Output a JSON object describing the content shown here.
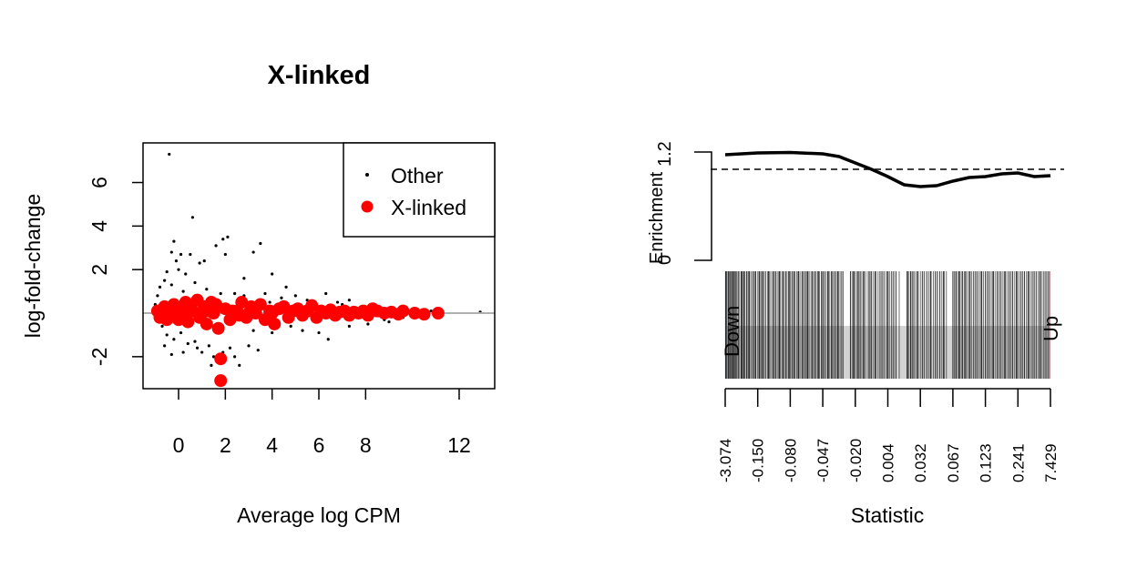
{
  "chart_data": [
    {
      "type": "scatter",
      "title": "X-linked",
      "xlabel": "Average log CPM",
      "ylabel": "log-fold-change",
      "xlim": [
        -1.52,
        13.52
      ],
      "ylim": [
        -3.47,
        7.82
      ],
      "xticks": [
        0,
        2,
        4,
        6,
        8,
        12
      ],
      "yticks": [
        -2,
        2,
        4,
        6
      ],
      "hline": 0,
      "hline_color": "#b0b0b0",
      "legend": {
        "placement": "top-right",
        "entries": [
          {
            "label": "Other",
            "color": "#000000",
            "marker": "small-dot"
          },
          {
            "label": "X-linked",
            "color": "#ff0000",
            "marker": "large-dot"
          }
        ]
      },
      "series": [
        {
          "name": "Other",
          "color": "#000000",
          "points": [
            [
              -0.4,
              7.3
            ],
            [
              0.6,
              4.4
            ],
            [
              -0.2,
              3.3
            ],
            [
              -0.3,
              2.8
            ],
            [
              -0.1,
              2.4
            ],
            [
              0.1,
              2.7
            ],
            [
              0.5,
              2.7
            ],
            [
              0.9,
              2.3
            ],
            [
              1.1,
              2.4
            ],
            [
              0.0,
              2.0
            ],
            [
              0.3,
              1.8
            ],
            [
              -0.5,
              1.9
            ],
            [
              -0.6,
              1.5
            ],
            [
              -0.8,
              1.2
            ],
            [
              -0.3,
              1.3
            ],
            [
              0.2,
              1.0
            ],
            [
              0.7,
              1.4
            ],
            [
              1.2,
              1.1
            ],
            [
              1.6,
              3.1
            ],
            [
              1.9,
              3.4
            ],
            [
              2.1,
              3.5
            ],
            [
              2.0,
              2.7
            ],
            [
              3.5,
              3.2
            ],
            [
              3.2,
              2.8
            ],
            [
              4.0,
              1.8
            ],
            [
              2.8,
              1.6
            ],
            [
              3.7,
              0.9
            ],
            [
              4.6,
              1.2
            ],
            [
              5.0,
              0.8
            ],
            [
              5.5,
              0.6
            ],
            [
              6.3,
              0.9
            ],
            [
              7.0,
              0.4
            ],
            [
              7.3,
              0.6
            ],
            [
              8.2,
              0.3
            ],
            [
              9.0,
              0.2
            ],
            [
              10.8,
              0.1
            ],
            [
              11.3,
              0.05
            ],
            [
              12.9,
              0.05
            ],
            [
              -0.9,
              0.8
            ],
            [
              -1.0,
              0.4
            ],
            [
              -0.7,
              -0.6
            ],
            [
              -0.5,
              -1.0
            ],
            [
              -0.2,
              -1.2
            ],
            [
              0.1,
              -0.9
            ],
            [
              0.4,
              -1.4
            ],
            [
              0.7,
              -1.3
            ],
            [
              0.8,
              -1.6
            ],
            [
              1.0,
              -1.8
            ],
            [
              1.3,
              -1.5
            ],
            [
              1.5,
              -2.0
            ],
            [
              1.4,
              -2.4
            ],
            [
              1.9,
              -1.8
            ],
            [
              2.2,
              -1.6
            ],
            [
              2.4,
              -2.0
            ],
            [
              3.0,
              -1.5
            ],
            [
              3.4,
              -1.7
            ],
            [
              2.6,
              -2.4
            ],
            [
              3.2,
              -0.8
            ],
            [
              4.0,
              -0.9
            ],
            [
              4.8,
              -0.6
            ],
            [
              5.3,
              -0.8
            ],
            [
              6.0,
              -0.9
            ],
            [
              6.4,
              -1.2
            ],
            [
              7.3,
              -0.6
            ],
            [
              8.1,
              -0.5
            ],
            [
              9.0,
              -0.4
            ],
            [
              10.2,
              -0.1
            ],
            [
              -0.6,
              -1.5
            ],
            [
              0.2,
              -1.8
            ],
            [
              -0.3,
              -1.9
            ],
            [
              2.8,
              0.8
            ],
            [
              3.9,
              0.5
            ],
            [
              4.4,
              0.7
            ],
            [
              2.4,
              0.9
            ],
            [
              1.8,
              0.9
            ],
            [
              6.8,
              0.5
            ],
            [
              7.9,
              0.3
            ],
            [
              8.8,
              -0.3
            ],
            [
              9.6,
              -0.2
            ],
            [
              10.5,
              0.1
            ]
          ]
        },
        {
          "name": "X-linked",
          "color": "#ff0000",
          "points": [
            [
              -0.9,
              0.1
            ],
            [
              -0.8,
              -0.2
            ],
            [
              -0.6,
              0.3
            ],
            [
              -0.5,
              -0.3
            ],
            [
              -0.3,
              0.1
            ],
            [
              -0.2,
              0.4
            ],
            [
              0,
              -0.3
            ],
            [
              0.1,
              0.2
            ],
            [
              0.3,
              0.5
            ],
            [
              0.4,
              -0.4
            ],
            [
              0.6,
              0.1
            ],
            [
              0.8,
              0.6
            ],
            [
              0.9,
              -0.2
            ],
            [
              1.1,
              0.3
            ],
            [
              1.2,
              -0.5
            ],
            [
              1.4,
              0.5
            ],
            [
              1.5,
              0
            ],
            [
              1.7,
              -0.7
            ],
            [
              1.6,
              0.4
            ],
            [
              1.8,
              -2.1
            ],
            [
              1.8,
              -3.1
            ],
            [
              2.0,
              0.2
            ],
            [
              2.2,
              -0.3
            ],
            [
              2.5,
              0.1
            ],
            [
              2.7,
              0.5
            ],
            [
              2.9,
              -0.2
            ],
            [
              3.1,
              0.3
            ],
            [
              3.3,
              0
            ],
            [
              3.5,
              0.4
            ],
            [
              3.7,
              -0.3
            ],
            [
              3.9,
              0.1
            ],
            [
              4.1,
              -0.5
            ],
            [
              4.3,
              0.2
            ],
            [
              4.5,
              0.3
            ],
            [
              4.7,
              -0.2
            ],
            [
              4.9,
              0.1
            ],
            [
              5.1,
              0.2
            ],
            [
              5.3,
              -0.1
            ],
            [
              5.5,
              0.1
            ],
            [
              5.7,
              0.35
            ],
            [
              5.9,
              -0.2
            ],
            [
              6.1,
              0.1
            ],
            [
              6.3,
              0
            ],
            [
              6.5,
              0.15
            ],
            [
              6.7,
              -0.1
            ],
            [
              6.9,
              0.05
            ],
            [
              7.1,
              0.1
            ],
            [
              7.3,
              -0.1
            ],
            [
              7.5,
              0.05
            ],
            [
              7.7,
              0
            ],
            [
              7.9,
              0.1
            ],
            [
              8.1,
              -0.1
            ],
            [
              8.3,
              0.2
            ],
            [
              8.5,
              0.1
            ],
            [
              8.8,
              0
            ],
            [
              9.1,
              0.05
            ],
            [
              9.4,
              -0.05
            ],
            [
              9.6,
              0.1
            ],
            [
              10.1,
              0
            ],
            [
              10.5,
              -0.05
            ],
            [
              11.1,
              0
            ],
            [
              -0.7,
              0
            ],
            [
              -0.4,
              -0.1
            ],
            [
              0.2,
              -0.1
            ],
            [
              0.5,
              0.2
            ],
            [
              1.0,
              0
            ],
            [
              1.3,
              0.1
            ],
            [
              2.3,
              0.1
            ],
            [
              2.6,
              -0.1
            ],
            [
              3.0,
              0
            ],
            [
              4.0,
              0
            ]
          ]
        }
      ]
    },
    {
      "type": "line",
      "xlabel": "Statistic",
      "ylabel": "Enrichment",
      "yticks": [
        0,
        1.2
      ],
      "ylim": [
        0,
        1.2
      ],
      "reference_line": 1,
      "xtick_labels": [
        "-3.074",
        "-0.150",
        "-0.080",
        "-0.047",
        "-0.020",
        "0.004",
        "0.032",
        "0.067",
        "0.123",
        "0.241",
        "7.429"
      ],
      "left_label": "Down",
      "right_label": "Up",
      "left_color": "#add8e6",
      "right_color": "#ffc0cb",
      "barcode_background": "#d3d3d3",
      "enrichment_curve": [
        [
          0,
          1.16
        ],
        [
          0.05,
          1.17
        ],
        [
          0.1,
          1.18
        ],
        [
          0.2,
          1.185
        ],
        [
          0.3,
          1.17
        ],
        [
          0.35,
          1.14
        ],
        [
          0.4,
          1.07
        ],
        [
          0.45,
          1.0
        ],
        [
          0.5,
          0.92
        ],
        [
          0.55,
          0.83
        ],
        [
          0.6,
          0.81
        ],
        [
          0.65,
          0.82
        ],
        [
          0.7,
          0.87
        ],
        [
          0.75,
          0.91
        ],
        [
          0.8,
          0.92
        ],
        [
          0.85,
          0.95
        ],
        [
          0.9,
          0.96
        ],
        [
          0.95,
          0.92
        ],
        [
          1.0,
          0.93
        ]
      ],
      "barcode_ranks": [
        0.002,
        0.006,
        0.01,
        0.013,
        0.017,
        0.02,
        0.024,
        0.028,
        0.031,
        0.035,
        0.04,
        0.044,
        0.05,
        0.053,
        0.057,
        0.06,
        0.066,
        0.07,
        0.074,
        0.08,
        0.085,
        0.09,
        0.094,
        0.1,
        0.105,
        0.11,
        0.114,
        0.118,
        0.124,
        0.13,
        0.134,
        0.14,
        0.146,
        0.15,
        0.155,
        0.16,
        0.166,
        0.17,
        0.176,
        0.18,
        0.186,
        0.19,
        0.196,
        0.2,
        0.205,
        0.21,
        0.214,
        0.22,
        0.225,
        0.23,
        0.236,
        0.24,
        0.246,
        0.25,
        0.254,
        0.26,
        0.266,
        0.27,
        0.276,
        0.28,
        0.286,
        0.29,
        0.296,
        0.3,
        0.305,
        0.31,
        0.316,
        0.32,
        0.326,
        0.33,
        0.336,
        0.34,
        0.346,
        0.35,
        0.356,
        0.362,
        0.385,
        0.39,
        0.395,
        0.4,
        0.406,
        0.41,
        0.415,
        0.42,
        0.426,
        0.432,
        0.44,
        0.445,
        0.45,
        0.456,
        0.462,
        0.47,
        0.476,
        0.482,
        0.488,
        0.495,
        0.5,
        0.506,
        0.512,
        0.518,
        0.525,
        0.535,
        0.56,
        0.565,
        0.57,
        0.575,
        0.58,
        0.586,
        0.592,
        0.6,
        0.606,
        0.612,
        0.62,
        0.626,
        0.632,
        0.64,
        0.646,
        0.652,
        0.66,
        0.666,
        0.672,
        0.68,
        0.7,
        0.705,
        0.71,
        0.715,
        0.72,
        0.726,
        0.73,
        0.736,
        0.74,
        0.746,
        0.752,
        0.758,
        0.764,
        0.77,
        0.776,
        0.782,
        0.788,
        0.794,
        0.8,
        0.806,
        0.812,
        0.818,
        0.824,
        0.83,
        0.836,
        0.842,
        0.848,
        0.854,
        0.86,
        0.866,
        0.872,
        0.878,
        0.884,
        0.89,
        0.896,
        0.902,
        0.908,
        0.914,
        0.92,
        0.926,
        0.932,
        0.938,
        0.944,
        0.95,
        0.956,
        0.962,
        0.968,
        0.974,
        0.98,
        0.986,
        0.992,
        0.997
      ]
    }
  ]
}
